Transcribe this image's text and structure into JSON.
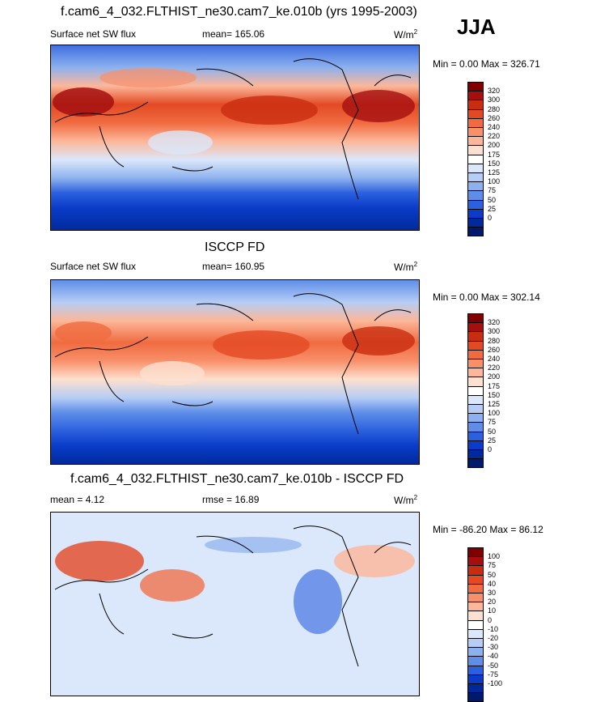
{
  "season": "JJA",
  "panels": [
    {
      "id": "model",
      "title": "f.cam6_4_032.FLTHIST_ne30.cam7_ke.010b (yrs 1995-2003)",
      "left_label": "Surface net SW flux",
      "center_label": "mean= 165.06",
      "units": "W/m",
      "units_sup": "2",
      "minmax": "Min =    0.00 Max = 326.71",
      "colorbar": [
        "320",
        "300",
        "280",
        "260",
        "240",
        "220",
        "200",
        "175",
        "150",
        "125",
        "100",
        "75",
        "50",
        "25",
        "0"
      ],
      "colors": [
        "#7f0000",
        "#a50f0f",
        "#c92d10",
        "#e34a24",
        "#f06b40",
        "#f8906a",
        "#fcb79a",
        "#fde0cf",
        "#ffffff",
        "#dbe7fb",
        "#b6cdf5",
        "#8db1ee",
        "#5e8ee8",
        "#2b60de",
        "#0a3cc8",
        "#002a9c",
        "#001a6b"
      ]
    },
    {
      "id": "obs",
      "title": "ISCCP FD",
      "left_label": "Surface net SW flux",
      "center_label": "mean= 160.95",
      "units": "W/m",
      "units_sup": "2",
      "minmax": "Min =    0.00 Max = 302.14",
      "colorbar": [
        "320",
        "300",
        "280",
        "260",
        "240",
        "220",
        "200",
        "175",
        "150",
        "125",
        "100",
        "75",
        "50",
        "25",
        "0"
      ]
    },
    {
      "id": "diff",
      "title": "f.cam6_4_032.FLTHIST_ne30.cam7_ke.010b - ISCCP FD",
      "left_label": "mean =   4.12",
      "center_label": "rmse =  16.89",
      "units": "W/m",
      "units_sup": "2",
      "minmax": "Min = -86.20 Max =  86.12",
      "colorbar": [
        "100",
        "75",
        "50",
        "40",
        "30",
        "20",
        "10",
        "0",
        "-10",
        "-20",
        "-30",
        "-40",
        "-50",
        "-75",
        "-100"
      ]
    }
  ]
}
